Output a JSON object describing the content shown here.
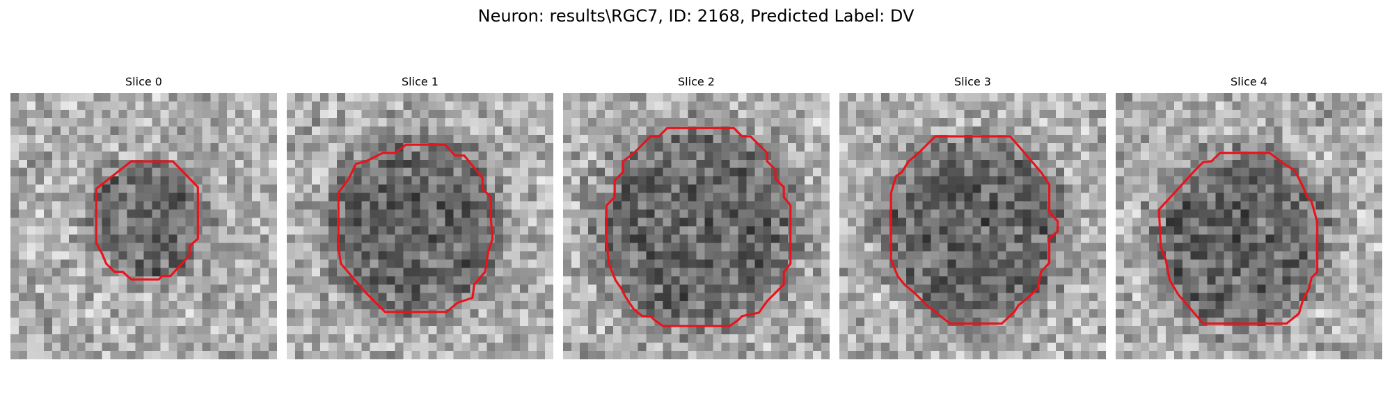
{
  "figure": {
    "title": "Neuron: results\\RGC7, ID: 2168, Predicted Label: DV"
  },
  "panels": [
    {
      "title": "Slice 0"
    },
    {
      "title": "Slice 1"
    },
    {
      "title": "Slice 2"
    },
    {
      "title": "Slice 3"
    },
    {
      "title": "Slice 4"
    }
  ],
  "colors": {
    "contour": "#e8131b",
    "background": "#ffffff"
  }
}
